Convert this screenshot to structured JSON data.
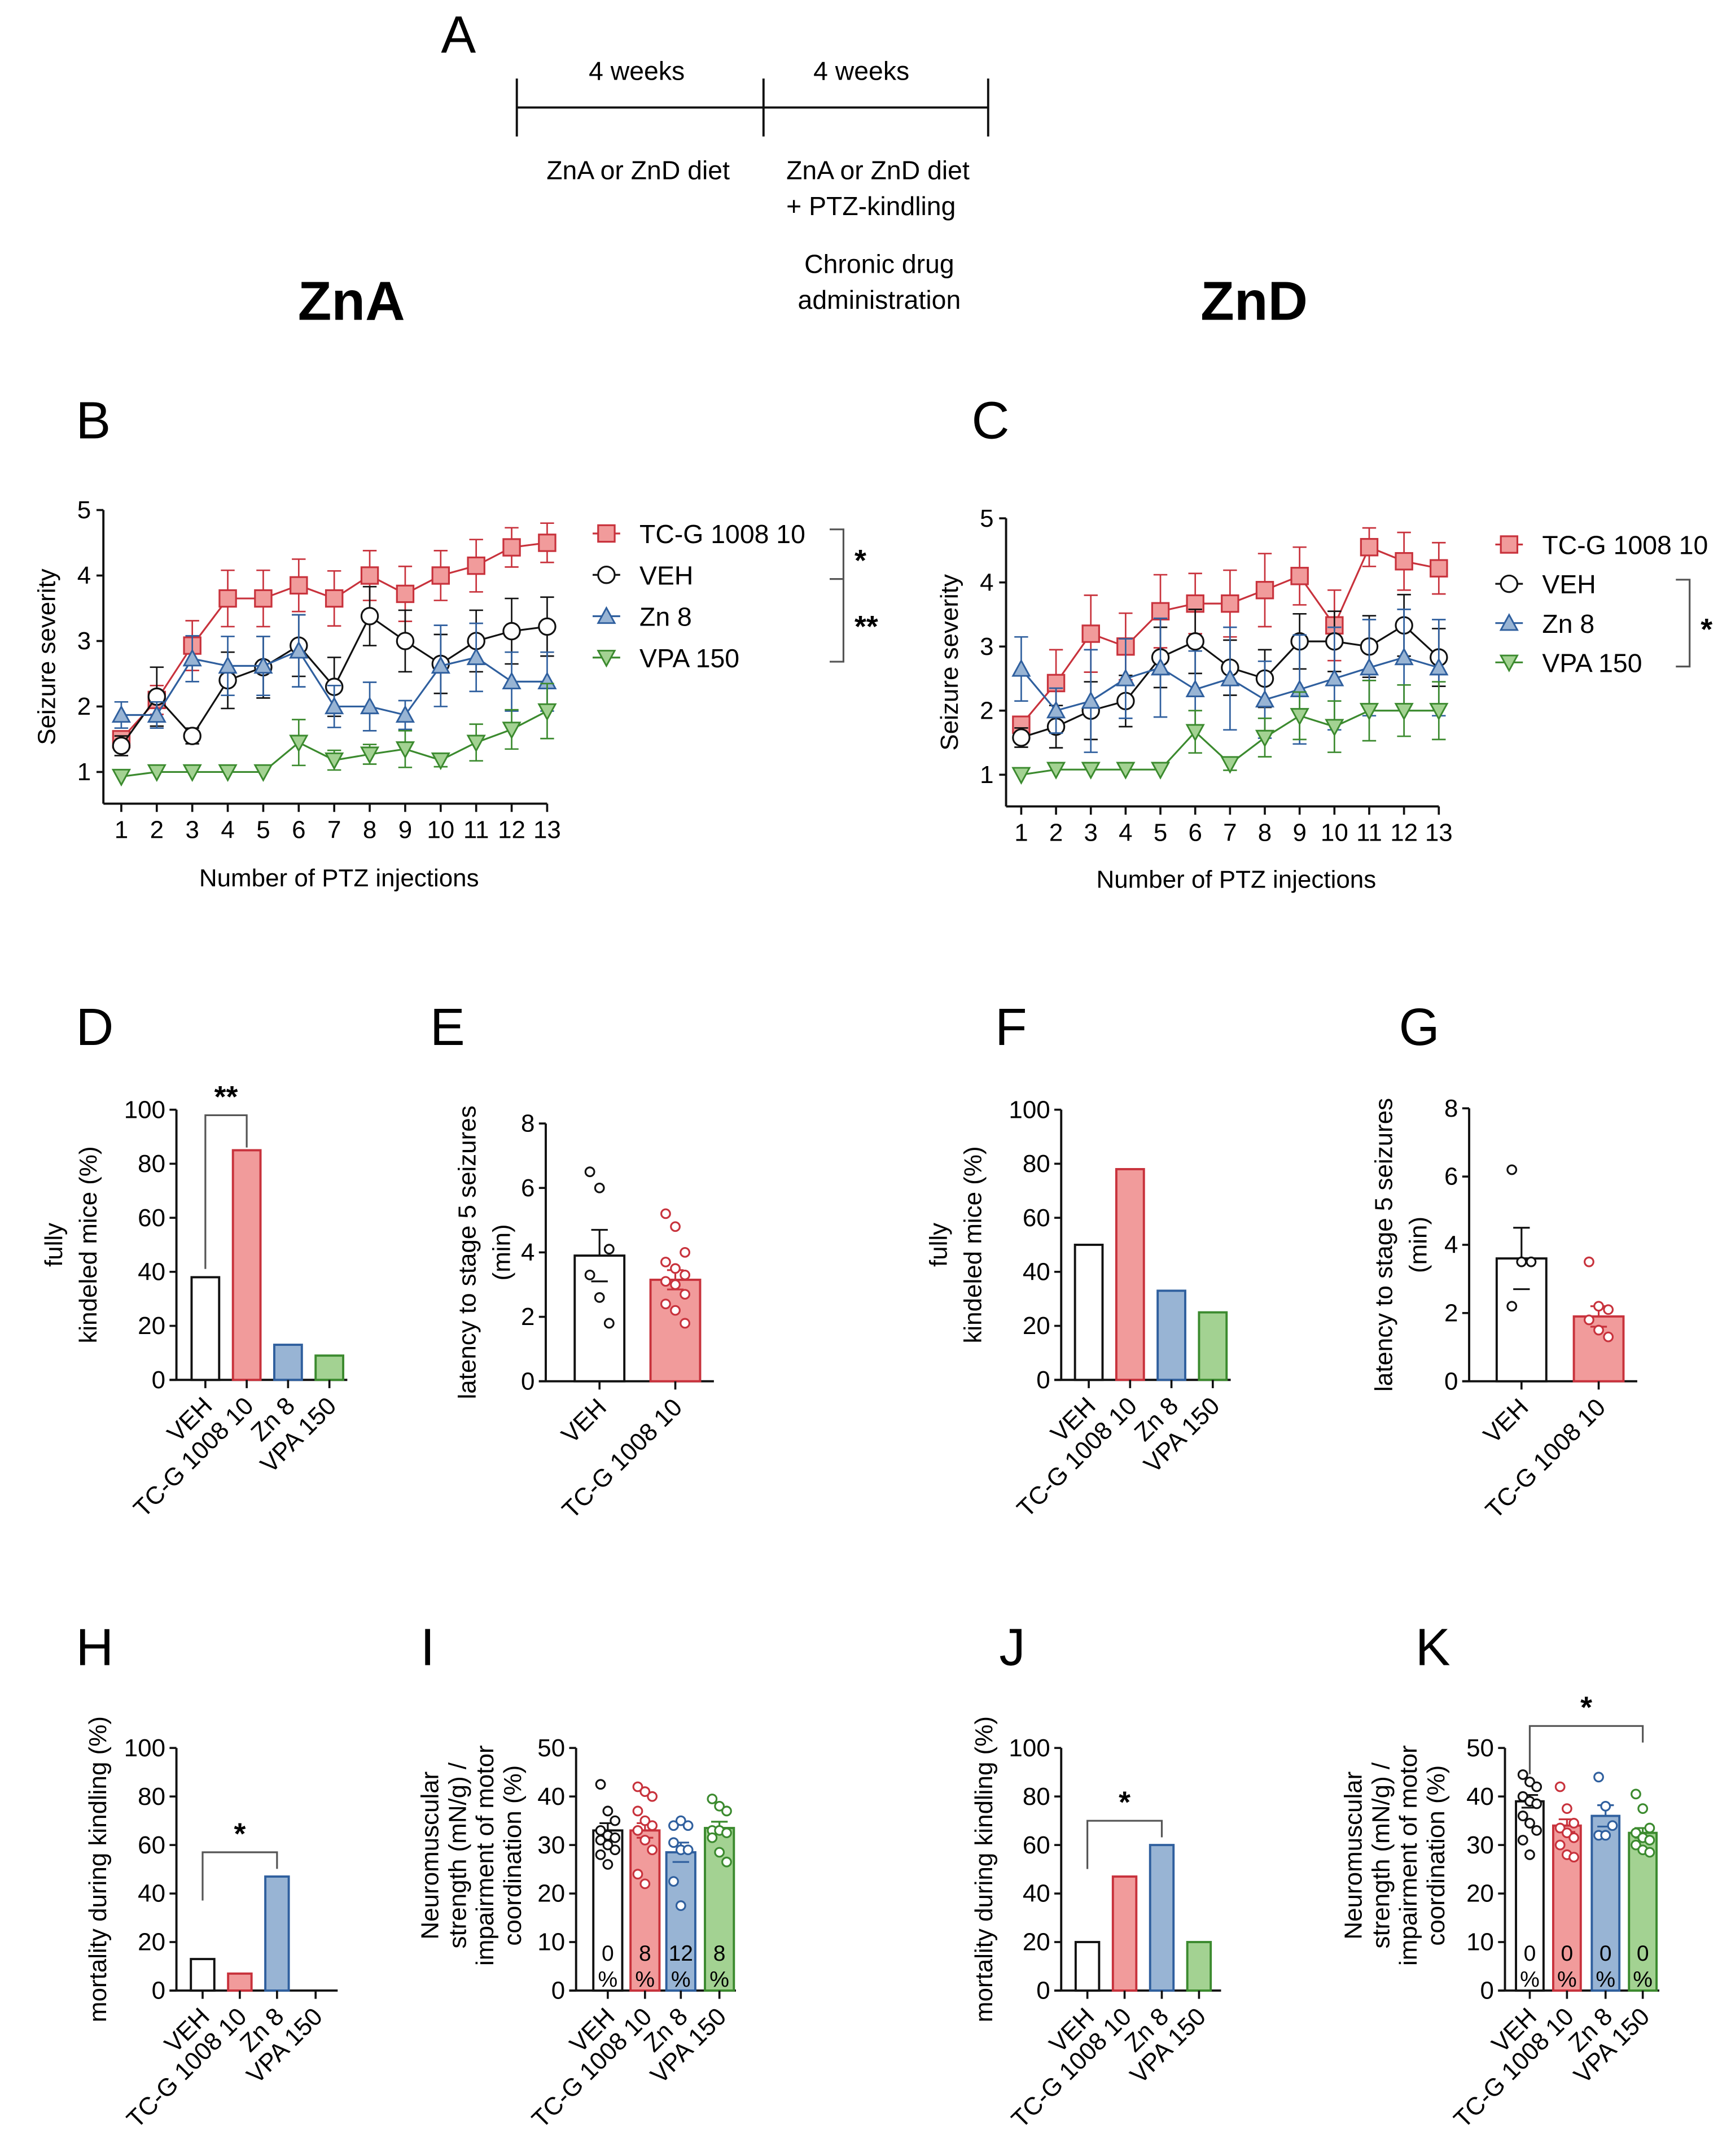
{
  "figure": {
    "panel_letters": [
      "A",
      "B",
      "C",
      "D",
      "E",
      "F",
      "G",
      "H",
      "I",
      "J",
      "K"
    ],
    "group_titles": {
      "zna": "ZnA",
      "znd": "ZnD"
    }
  },
  "timeline": {
    "period1_label": "4 weeks",
    "period2_label": "4 weeks",
    "phase1": [
      "ZnA or ZnD diet"
    ],
    "phase2": [
      "ZnA or ZnD diet",
      "+ PTZ-kindling"
    ],
    "phase3": [
      "Chronic drug",
      "administration"
    ]
  },
  "colors": {
    "red": "#c8323c",
    "red_fill": "#f19b9b",
    "blue": "#2f5f9e",
    "blue_fill": "#98b4d4",
    "green": "#3b8a2e",
    "green_fill": "#a3d292",
    "black": "#111111"
  },
  "chart_data": [
    {
      "panel": "B",
      "type": "line",
      "group": "ZnA",
      "xlabel": "Number of PTZ injections",
      "ylabel": "Seizure severity",
      "x": [
        1,
        2,
        3,
        4,
        5,
        6,
        7,
        8,
        9,
        10,
        11,
        12,
        13
      ],
      "ylim": [
        0.5,
        5
      ],
      "yticks": [
        1,
        2,
        3,
        4,
        5
      ],
      "series": [
        {
          "name": "TC-G  1008 10",
          "color": "red",
          "marker": "square",
          "values": [
            1.5,
            2.1,
            2.93,
            3.65,
            3.65,
            3.85,
            3.65,
            4.0,
            3.72,
            4.0,
            4.15,
            4.43,
            4.5
          ],
          "sem": [
            0.12,
            0.22,
            0.38,
            0.43,
            0.43,
            0.4,
            0.42,
            0.38,
            0.42,
            0.38,
            0.4,
            0.3,
            0.3
          ]
        },
        {
          "name": "VEH",
          "color": "black",
          "marker": "circle",
          "values": [
            1.4,
            2.15,
            1.55,
            2.4,
            2.6,
            2.93,
            2.3,
            3.38,
            3.0,
            2.65,
            3.0,
            3.15,
            3.22
          ],
          "sem": [
            0.15,
            0.45,
            0.12,
            0.43,
            0.47,
            0.47,
            0.45,
            0.45,
            0.47,
            0.45,
            0.47,
            0.5,
            0.45
          ]
        },
        {
          "name": "Zn 8",
          "color": "blue",
          "marker": "triangle-up",
          "values": [
            1.87,
            1.87,
            2.73,
            2.62,
            2.62,
            2.85,
            2.0,
            2.0,
            1.87,
            2.62,
            2.75,
            2.38,
            2.38
          ],
          "sem": [
            0.2,
            0.2,
            0.35,
            0.45,
            0.45,
            0.55,
            0.32,
            0.37,
            0.22,
            0.62,
            0.52,
            0.45,
            0.45
          ]
        },
        {
          "name": "VPA 150",
          "color": "green",
          "marker": "triangle-down",
          "values": [
            0.93,
            1.0,
            1.0,
            1.0,
            1.0,
            1.45,
            1.18,
            1.27,
            1.35,
            1.18,
            1.45,
            1.65,
            1.93
          ],
          "sem": [
            0,
            0,
            0,
            0,
            0,
            0.35,
            0.15,
            0.15,
            0.28,
            0.1,
            0.28,
            0.3,
            0.42
          ]
        }
      ],
      "significance": [
        {
          "from": "TC-G  1008 10",
          "to": "VEH",
          "label": "*"
        },
        {
          "from": "VEH",
          "to": "VPA 150",
          "label": "**"
        }
      ]
    },
    {
      "panel": "C",
      "type": "line",
      "group": "ZnD",
      "xlabel": "Number of PTZ injections",
      "ylabel": "Seizure severity",
      "x": [
        1,
        2,
        3,
        4,
        5,
        6,
        7,
        8,
        9,
        10,
        11,
        12,
        13
      ],
      "ylim": [
        0.5,
        5
      ],
      "yticks": [
        1,
        2,
        3,
        4,
        5
      ],
      "series": [
        {
          "name": "TC-G 1008 10",
          "color": "red",
          "marker": "square",
          "values": [
            1.78,
            2.43,
            3.2,
            3.0,
            3.55,
            3.67,
            3.67,
            3.88,
            4.1,
            3.33,
            4.55,
            4.33,
            4.22
          ],
          "sem": [
            0.12,
            0.52,
            0.6,
            0.52,
            0.57,
            0.47,
            0.52,
            0.57,
            0.45,
            0.55,
            0.3,
            0.45,
            0.4
          ]
        },
        {
          "name": "VEH",
          "color": "black",
          "marker": "circle",
          "values": [
            1.58,
            1.75,
            2.0,
            2.15,
            2.83,
            3.08,
            2.67,
            2.5,
            3.08,
            3.08,
            3.0,
            3.33,
            2.83
          ],
          "sem": [
            0.15,
            0.33,
            0.45,
            0.4,
            0.47,
            0.5,
            0.43,
            0.45,
            0.43,
            0.47,
            0.48,
            0.48,
            0.45
          ]
        },
        {
          "name": "Zn 8",
          "color": "blue",
          "marker": "triangle-up",
          "values": [
            2.65,
            2.0,
            2.15,
            2.5,
            2.67,
            2.33,
            2.5,
            2.17,
            2.33,
            2.5,
            2.67,
            2.83,
            2.67
          ],
          "sem": [
            0.5,
            0.35,
            0.8,
            0.62,
            0.77,
            0.6,
            0.8,
            0.6,
            0.85,
            0.8,
            0.75,
            0.75,
            0.75
          ]
        },
        {
          "name": "VPA 150",
          "color": "green",
          "marker": "triangle-down",
          "values": [
            1.0,
            1.08,
            1.08,
            1.08,
            1.08,
            1.67,
            1.17,
            1.58,
            1.92,
            1.75,
            2.0,
            2.0,
            2.0
          ],
          "sem": [
            0,
            0,
            0,
            0,
            0,
            0.33,
            0.1,
            0.3,
            0.37,
            0.4,
            0.47,
            0.4,
            0.45
          ]
        }
      ],
      "significance": [
        {
          "from": "VEH",
          "to": "VPA 150",
          "label": "*"
        }
      ]
    },
    {
      "panel": "D",
      "type": "bar",
      "group": "ZnA",
      "ylabel": [
        "fully",
        "kindeled mice (%)"
      ],
      "ylim": [
        0,
        100
      ],
      "yticks": [
        0,
        20,
        40,
        60,
        80,
        100
      ],
      "categories": [
        "VEH",
        "TC-G 1008 10",
        "Zn 8",
        "VPA 150"
      ],
      "values": [
        38,
        85,
        13,
        9
      ],
      "significance": [
        {
          "from": 0,
          "to": 1,
          "label": "**"
        }
      ]
    },
    {
      "panel": "E",
      "type": "bar",
      "group": "ZnA",
      "ylabel": [
        "latency to stage 5 seizures",
        "(min)"
      ],
      "ylim": [
        0,
        8
      ],
      "yticks": [
        0,
        2,
        4,
        6,
        8
      ],
      "categories": [
        "VEH",
        "TC-G 1008 10"
      ],
      "values": [
        3.9,
        3.15
      ],
      "sem": [
        0.8,
        0.3
      ],
      "points": [
        [
          6.5,
          6.0,
          4.1,
          3.3,
          2.6,
          1.8
        ],
        [
          5.2,
          4.8,
          4.0,
          3.7,
          3.5,
          3.3,
          3.1,
          3.0,
          2.7,
          2.4,
          2.2,
          1.8
        ]
      ]
    },
    {
      "panel": "F",
      "type": "bar",
      "group": "ZnD",
      "ylabel": [
        "fully",
        "kindeled mice (%)"
      ],
      "ylim": [
        0,
        100
      ],
      "yticks": [
        0,
        20,
        40,
        60,
        80,
        100
      ],
      "categories": [
        "VEH",
        "TC-G 1008 10",
        "Zn 8",
        "VPA 150"
      ],
      "values": [
        50,
        78,
        33,
        25
      ]
    },
    {
      "panel": "G",
      "type": "bar",
      "group": "ZnD",
      "ylabel": [
        "latency to stage 5 seizures",
        "(min)"
      ],
      "ylim": [
        0,
        8
      ],
      "yticks": [
        0,
        2,
        4,
        6,
        8
      ],
      "categories": [
        "VEH",
        "TC-G 1008 10"
      ],
      "values": [
        3.6,
        1.9
      ],
      "sem": [
        0.9,
        0.3
      ],
      "points": [
        [
          6.2,
          3.5,
          3.5,
          2.2
        ],
        [
          3.5,
          2.2,
          2.1,
          1.8,
          1.5,
          1.3
        ]
      ]
    },
    {
      "panel": "H",
      "type": "bar",
      "group": "ZnA",
      "ylabel": [
        "mortality during kindling (%)"
      ],
      "ylim": [
        0,
        100
      ],
      "yticks": [
        0,
        20,
        40,
        60,
        80,
        100
      ],
      "categories": [
        "VEH",
        "TC-G 1008 10",
        "Zn 8",
        "VPA 150"
      ],
      "values": [
        13,
        7,
        47,
        0
      ],
      "significance": [
        {
          "from": 0,
          "to": 2,
          "label": "*"
        }
      ]
    },
    {
      "panel": "I",
      "type": "bar",
      "group": "ZnA",
      "ylabel": [
        "Neuromuscular",
        "strength (mN/g) /",
        "impairment of motor",
        "coordination (%)"
      ],
      "ylim": [
        0,
        50
      ],
      "yticks": [
        0,
        10,
        20,
        30,
        40,
        50
      ],
      "categories": [
        "VEH",
        "TC-G 1008 10",
        "Zn 8",
        "VPA 150"
      ],
      "values": [
        33,
        33,
        28.5,
        33.5
      ],
      "sem": [
        1.5,
        1.5,
        2,
        1.3
      ],
      "bar_labels": [
        [
          "0",
          "%"
        ],
        [
          "8",
          "%"
        ],
        [
          "12",
          "%"
        ],
        [
          "8",
          "%"
        ]
      ],
      "points": [
        [
          42.5,
          37,
          35,
          33,
          32,
          31.5,
          31,
          30,
          29,
          28,
          26
        ],
        [
          42,
          41,
          40,
          37,
          35,
          34,
          33,
          31,
          29,
          24,
          22
        ],
        [
          34,
          35,
          34,
          30.5,
          29,
          29,
          22.5,
          17.5
        ],
        [
          39.5,
          38,
          37,
          33,
          33,
          32.5,
          31.5,
          28.5,
          26.5
        ]
      ]
    },
    {
      "panel": "J",
      "type": "bar",
      "group": "ZnD",
      "ylabel": [
        "mortality during kindling (%)"
      ],
      "ylim": [
        0,
        100
      ],
      "yticks": [
        0,
        20,
        40,
        60,
        80,
        100
      ],
      "categories": [
        "VEH",
        "TC-G 1008 10",
        "Zn 8",
        "VPA 150"
      ],
      "values": [
        20,
        47,
        60,
        20
      ],
      "significance": [
        {
          "from": 0,
          "to": 2,
          "label": "*"
        }
      ]
    },
    {
      "panel": "K",
      "type": "bar",
      "group": "ZnD",
      "ylabel": [
        "Neuromuscular",
        "strength (mN/g) /",
        "impairment of motor",
        "coordination (%)"
      ],
      "ylim": [
        0,
        50
      ],
      "yticks": [
        0,
        10,
        20,
        30,
        40,
        50
      ],
      "categories": [
        "VEH",
        "TC-G 1008 10",
        "Zn 8",
        "VPA 150"
      ],
      "values": [
        39,
        34,
        36,
        32.5
      ],
      "sem": [
        1.3,
        1.3,
        2.2,
        1.0
      ],
      "bar_labels": [
        [
          "0",
          "%"
        ],
        [
          "0",
          "%"
        ],
        [
          "0",
          "%"
        ],
        [
          "0",
          "%"
        ]
      ],
      "points": [
        [
          44.5,
          43,
          42,
          40,
          39,
          38.5,
          36,
          34.5,
          33,
          31,
          28
        ],
        [
          42,
          37.5,
          34.5,
          33.5,
          32.5,
          31.5,
          30,
          28,
          27.5
        ],
        [
          44,
          38,
          34,
          32,
          32
        ],
        [
          40.5,
          37.5,
          33.5,
          32.5,
          31.5,
          31,
          30,
          29,
          28.5
        ]
      ],
      "significance": [
        {
          "from": 0,
          "to": 3,
          "label": "*"
        }
      ]
    }
  ]
}
